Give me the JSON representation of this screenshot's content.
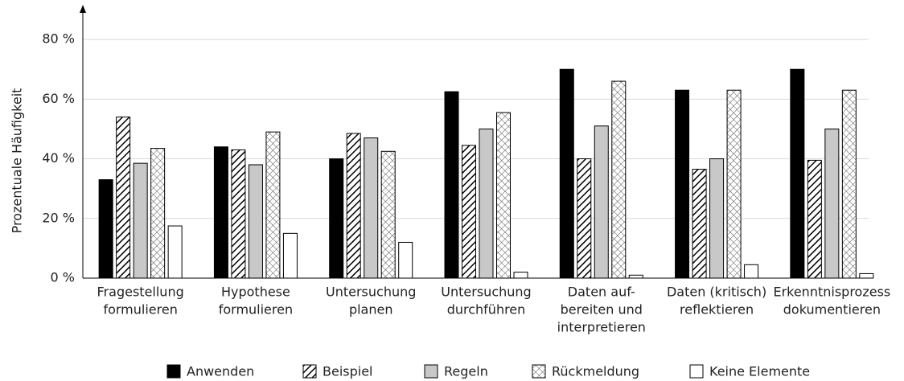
{
  "chart_data": {
    "type": "bar",
    "y_label": "Prozentuale Häufigkeit",
    "categories": [
      [
        "Fragestellung",
        "formulieren"
      ],
      [
        "Hypothese",
        "formulieren"
      ],
      [
        "Untersuchung",
        "planen"
      ],
      [
        "Untersuchung",
        "durchführen"
      ],
      [
        "Daten auf-",
        "bereiten und",
        "interpretieren"
      ],
      [
        "Daten (kritisch)",
        "reflektieren"
      ],
      [
        "Erkenntnisprozess",
        "dokumentieren"
      ]
    ],
    "series": [
      {
        "name": "Anwenden",
        "color": "#000000",
        "pattern": "solid",
        "values": [
          33,
          44,
          40,
          62.5,
          70,
          63,
          70
        ]
      },
      {
        "name": "Beispiel",
        "color": "#000000",
        "pattern": "diagonal",
        "values": [
          54,
          43,
          48.5,
          44.5,
          40,
          36.5,
          39.5
        ]
      },
      {
        "name": "Regeln",
        "color": "#c8c8c8",
        "pattern": "solid",
        "values": [
          38.5,
          38,
          47,
          50,
          51,
          40,
          50
        ]
      },
      {
        "name": "Rückmeldung",
        "color": "#000000",
        "pattern": "cross",
        "values": [
          43.5,
          49,
          42.5,
          55.5,
          66,
          63,
          63
        ]
      },
      {
        "name": "Keine Elemente",
        "color": "#ffffff",
        "pattern": "solid",
        "values": [
          17.5,
          15,
          12,
          2,
          1,
          4.5,
          1.5
        ]
      }
    ],
    "ylim": [
      0,
      90
    ],
    "yticks": [
      {
        "value": 0,
        "label": "0 %"
      },
      {
        "value": 20,
        "label": "20 %"
      },
      {
        "value": 40,
        "label": "40 %"
      },
      {
        "value": 60,
        "label": "60 %"
      },
      {
        "value": 80,
        "label": "80 %"
      }
    ],
    "grid": true,
    "legend": "bottom"
  }
}
